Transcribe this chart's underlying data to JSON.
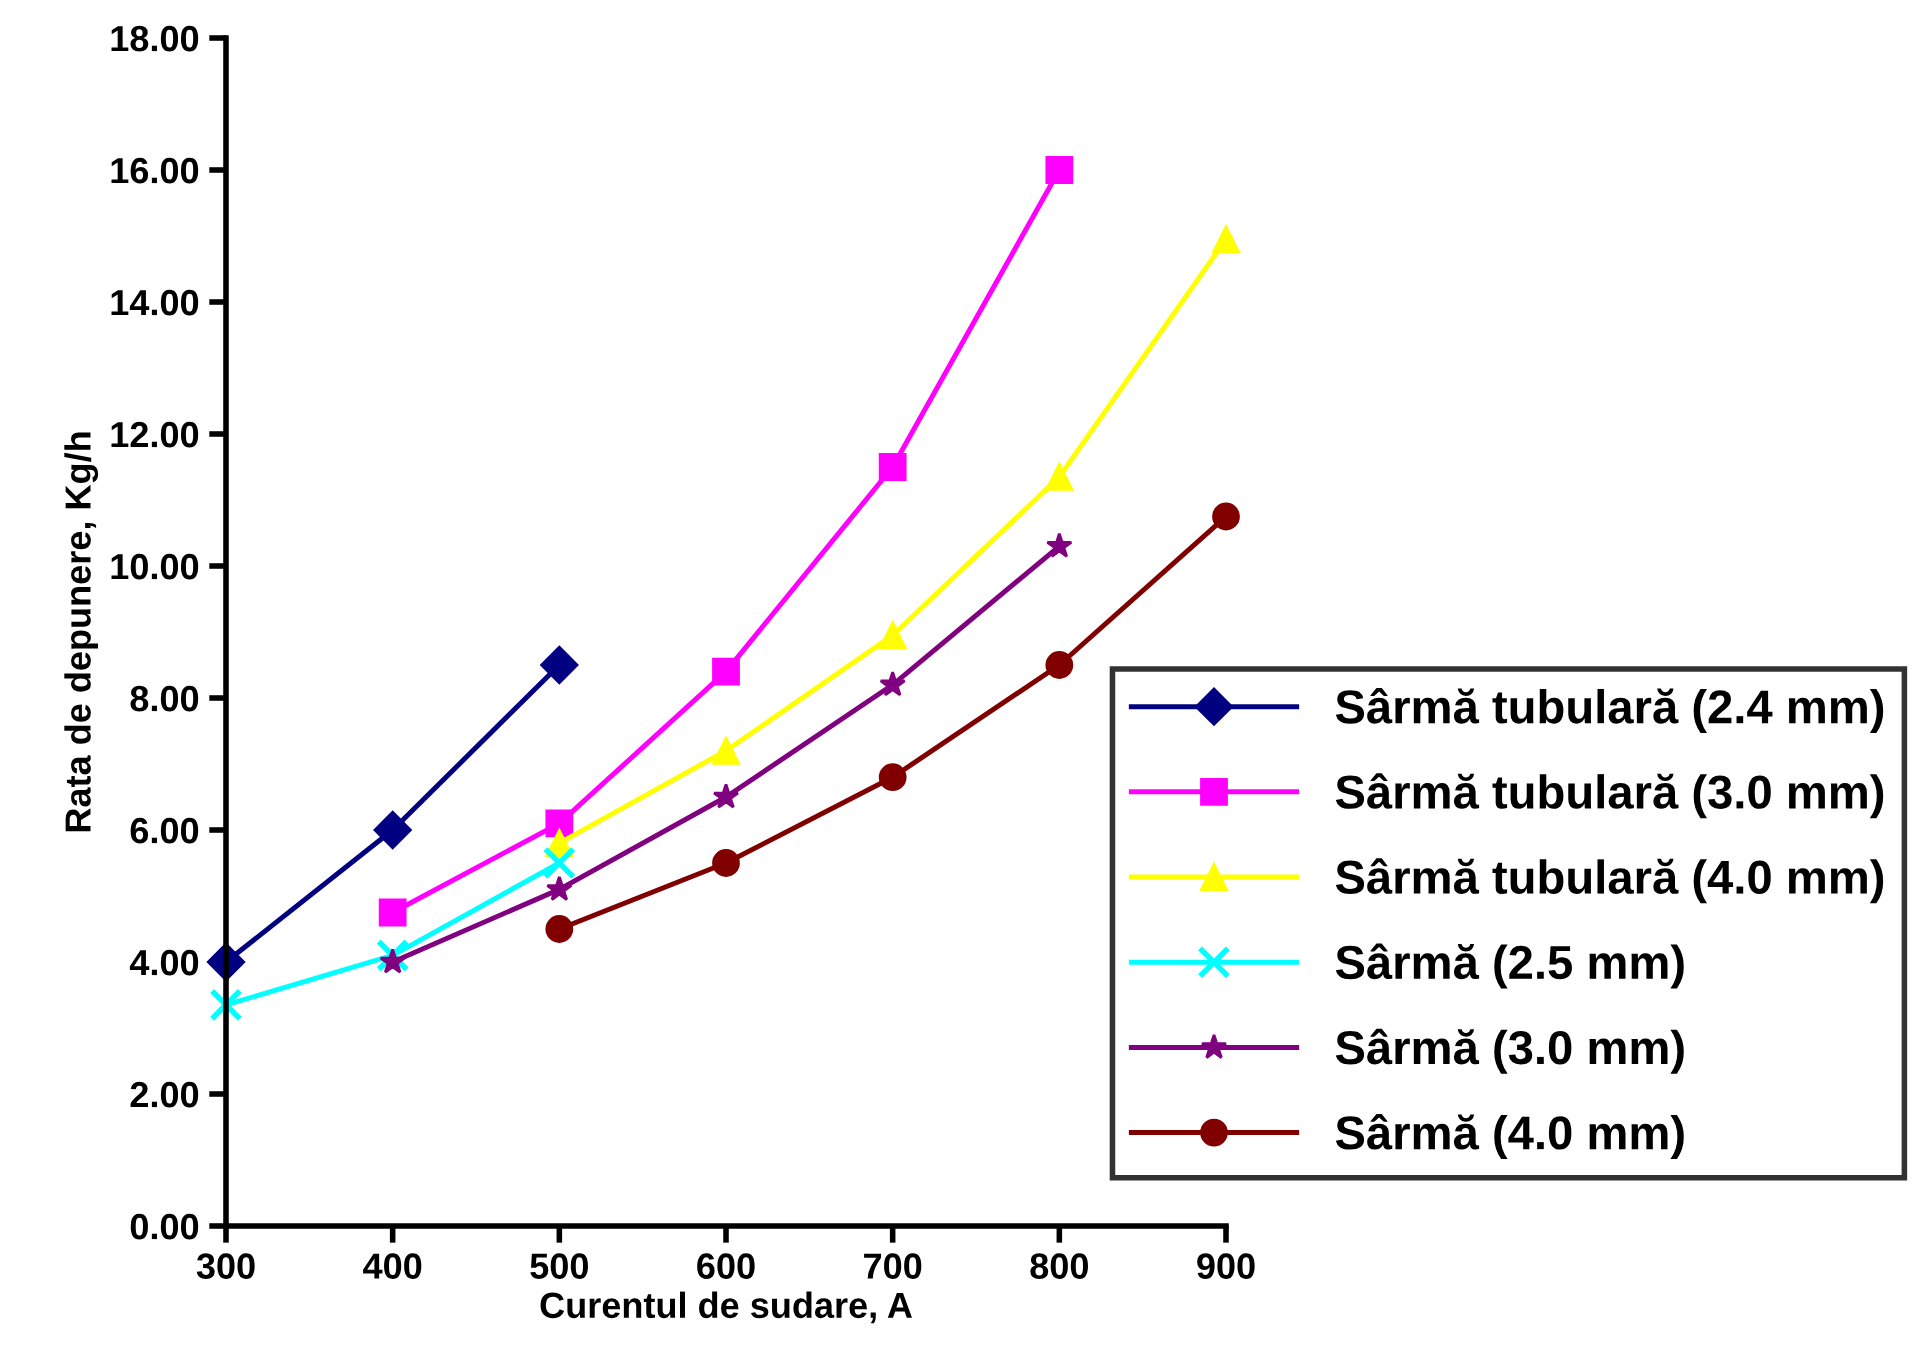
{
  "chart_data": {
    "type": "line",
    "xlabel": "Curentul de sudare, A",
    "ylabel": "Rata de depunere, Kg/h",
    "xlim": [
      300,
      900
    ],
    "xticks": [
      300,
      400,
      500,
      600,
      700,
      800,
      900
    ],
    "ylim": [
      0,
      18
    ],
    "yticks": [
      {
        "value": 0,
        "label": "0.00"
      },
      {
        "value": 2,
        "label": "2.00"
      },
      {
        "value": 4,
        "label": "4.00"
      },
      {
        "value": 6,
        "label": "6.00"
      },
      {
        "value": 8,
        "label": "8.00"
      },
      {
        "value": 10,
        "label": "10.00"
      },
      {
        "value": 12,
        "label": "12.00"
      },
      {
        "value": 14,
        "label": "14.00"
      },
      {
        "value": 16,
        "label": "16.00"
      },
      {
        "value": 18,
        "label": "18.00"
      }
    ],
    "grid": false,
    "legend": "right",
    "line_style": "solid",
    "series": [
      {
        "name": "Sârmă tubulară (2.4 mm)",
        "color": "#000080",
        "marker": "diamond",
        "x": [
          300,
          400,
          500
        ],
        "values": [
          4.0,
          6.0,
          8.5
        ]
      },
      {
        "name": "Sârmă tubulară (3.0 mm)",
        "color": "#ff00ff",
        "marker": "square",
        "x": [
          400,
          500,
          600,
          700,
          800
        ],
        "values": [
          4.75,
          6.1,
          8.4,
          11.5,
          16.0
        ]
      },
      {
        "name": "Sârmă tubulară (4.0 mm)",
        "color": "#ffff00",
        "marker": "triangle",
        "x": [
          500,
          600,
          700,
          800,
          900
        ],
        "values": [
          5.8,
          7.2,
          8.95,
          11.35,
          14.95
        ]
      },
      {
        "name": "Sârmă (2.5 mm)",
        "color": "#00ffff",
        "marker": "cross",
        "x": [
          300,
          400,
          500
        ],
        "values": [
          3.35,
          4.1,
          5.5
        ]
      },
      {
        "name": "Sârmă (3.0 mm)",
        "color": "#800080",
        "marker": "star",
        "x": [
          400,
          500,
          600,
          700,
          800
        ],
        "values": [
          4.0,
          5.1,
          6.5,
          8.2,
          10.3
        ]
      },
      {
        "name": "Sârmă (4.0 mm)",
        "color": "#800000",
        "marker": "circle",
        "x": [
          500,
          600,
          700,
          800,
          900
        ],
        "values": [
          4.5,
          5.5,
          6.8,
          8.5,
          10.75
        ]
      }
    ]
  }
}
